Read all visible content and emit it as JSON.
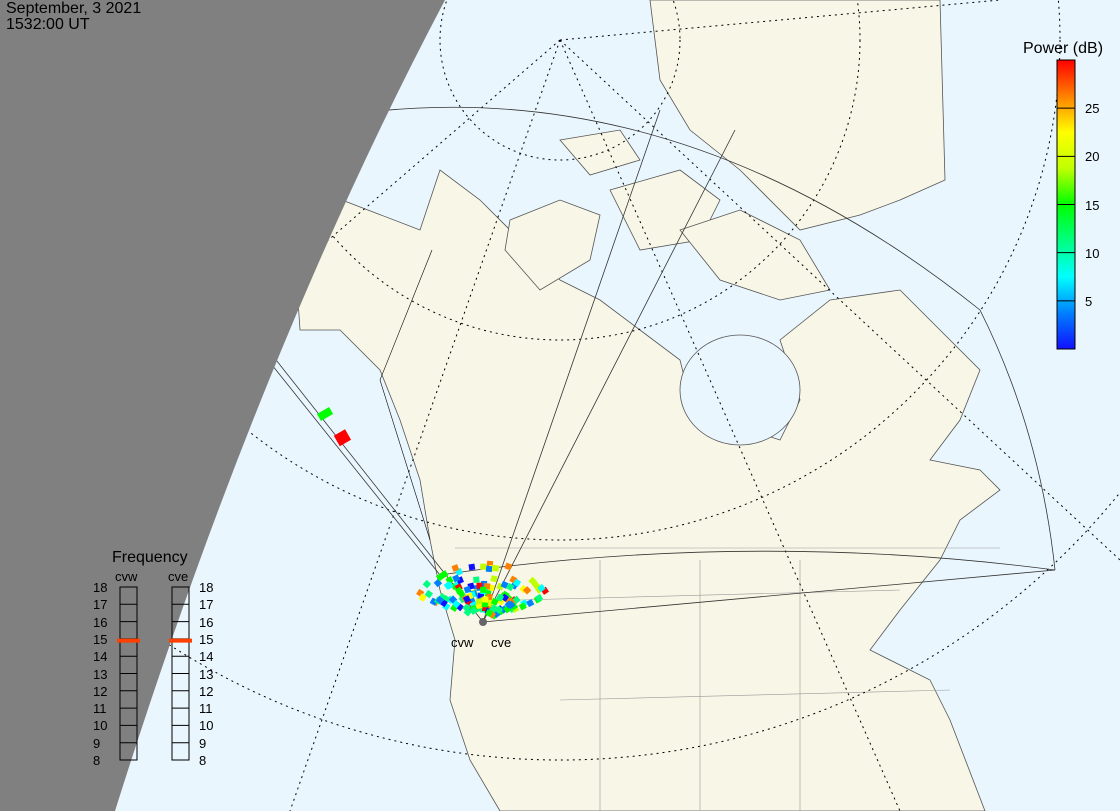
{
  "header": {
    "date": "September, 3 2021",
    "time": "1532:00 UT"
  },
  "colorbar": {
    "title": "Power (dB)",
    "min": 0,
    "max": 30,
    "ticks": [
      "5",
      "10",
      "15",
      "20",
      "25"
    ],
    "colors": [
      "#1010ff",
      "#0080ff",
      "#00ffff",
      "#00ff80",
      "#00ff00",
      "#c0ff00",
      "#ffff00",
      "#ff8000",
      "#ff0000"
    ]
  },
  "frequency_legend": {
    "title": "Frequency",
    "radars": [
      {
        "name": "cvw",
        "frequency_mhz": 15
      },
      {
        "name": "cve",
        "frequency_mhz": 15
      }
    ],
    "scale": [
      "18",
      "17",
      "16",
      "15",
      "14",
      "13",
      "12",
      "11",
      "10",
      "9",
      "8"
    ],
    "marker_color": "#ff4000"
  },
  "map": {
    "ocean_color": "#eaf6fe",
    "land_color": "#f8f6e6",
    "night_color": "#808080",
    "site_labels": [
      "cvw",
      "cve"
    ]
  }
}
